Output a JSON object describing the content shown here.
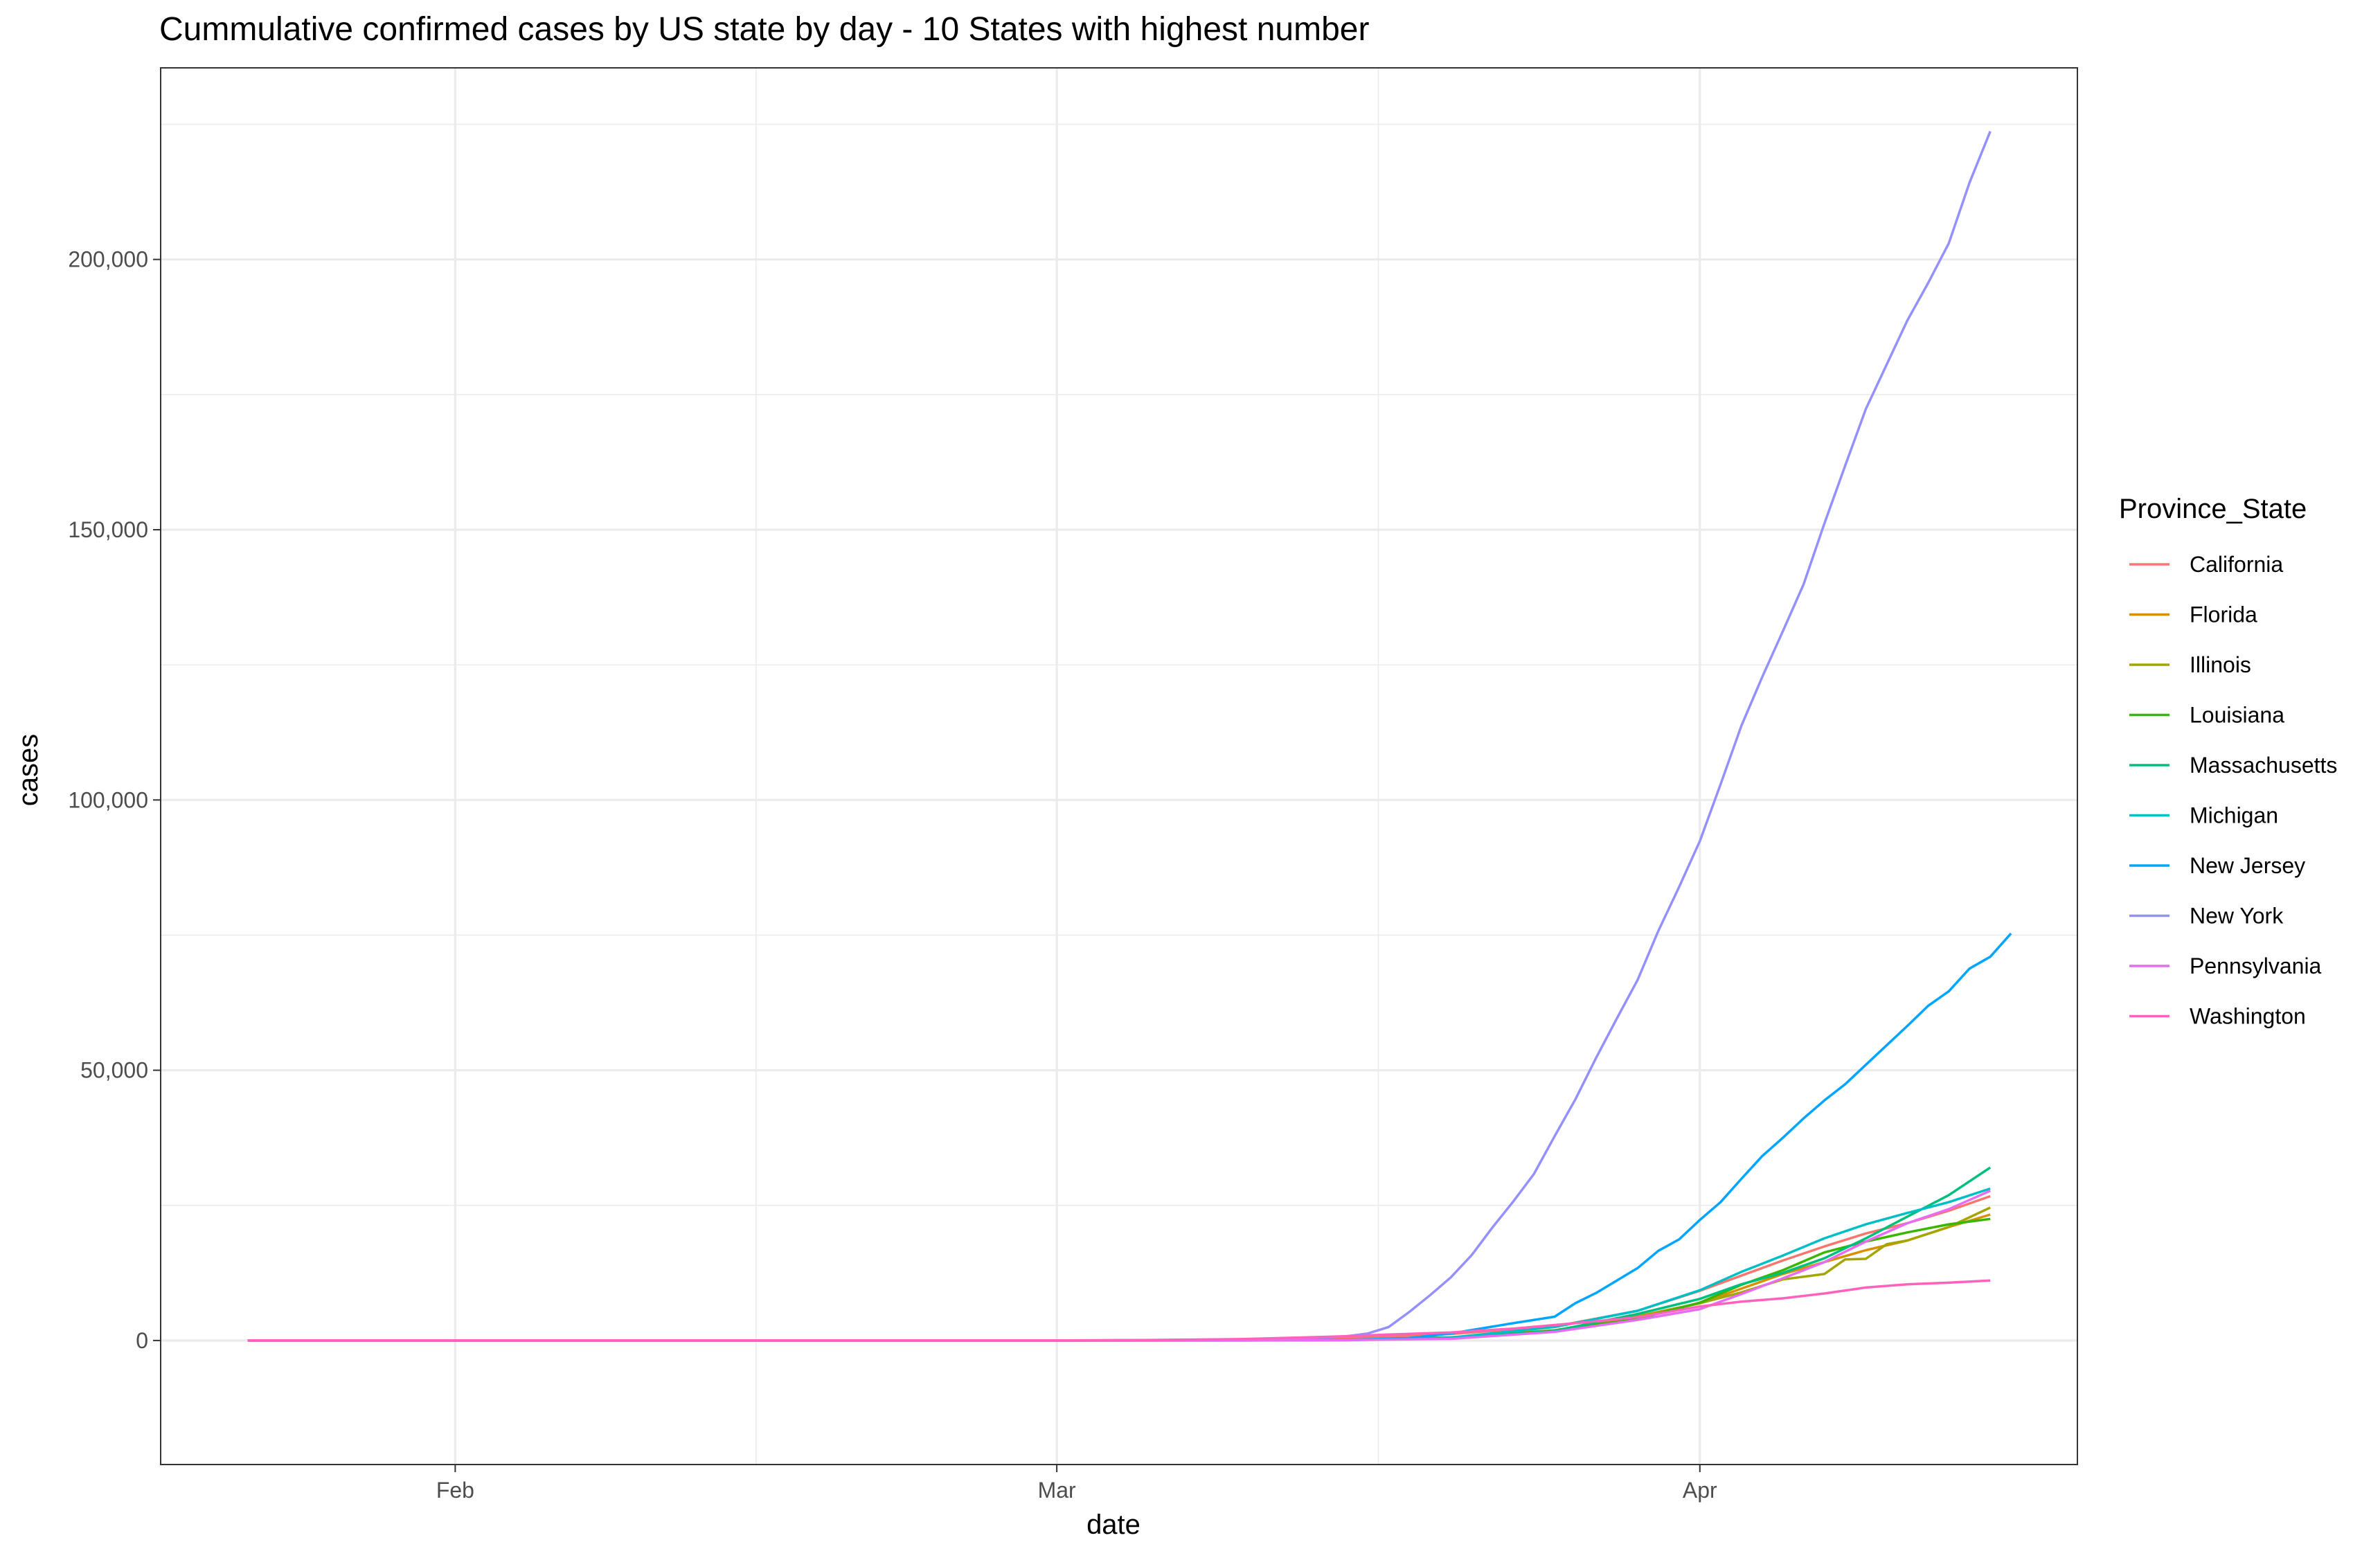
{
  "chart_data": {
    "type": "line",
    "title": "Cummulative confirmed cases by US state by day - 10 States with highest number",
    "xlabel": "date",
    "ylabel": "cases",
    "x_range": [
      "2020-01-22",
      "2020-04-15"
    ],
    "ylim": [
      -11200,
      223700
    ],
    "x_ticks": [
      {
        "date": "2020-02-01",
        "label": "Feb"
      },
      {
        "date": "2020-03-01",
        "label": "Mar"
      },
      {
        "date": "2020-04-01",
        "label": "Apr"
      }
    ],
    "y_ticks": [
      {
        "value": 0,
        "label": "0"
      },
      {
        "value": 50000,
        "label": "50,000"
      },
      {
        "value": 100000,
        "label": "100,000"
      },
      {
        "value": 150000,
        "label": "150,000"
      },
      {
        "value": 200000,
        "label": "200,000"
      }
    ],
    "grid": true,
    "legend_title": "Province_State",
    "legend_position": "right",
    "series": [
      {
        "name": "California",
        "color": "#F8766D",
        "points": [
          [
            "2020-01-22",
            0
          ],
          [
            "2020-03-01",
            0
          ],
          [
            "2020-03-10",
            150
          ],
          [
            "2020-03-15",
            400
          ],
          [
            "2020-03-20",
            1200
          ],
          [
            "2020-03-25",
            2600
          ],
          [
            "2020-03-29",
            5500
          ],
          [
            "2020-04-01",
            9200
          ],
          [
            "2020-04-03",
            12000
          ],
          [
            "2020-04-05",
            14800
          ],
          [
            "2020-04-07",
            17400
          ],
          [
            "2020-04-09",
            19800
          ],
          [
            "2020-04-11",
            21700
          ],
          [
            "2020-04-13",
            24000
          ],
          [
            "2020-04-15",
            26700
          ]
        ]
      },
      {
        "name": "Florida",
        "color": "#D89000",
        "points": [
          [
            "2020-01-22",
            0
          ],
          [
            "2020-03-01",
            0
          ],
          [
            "2020-03-10",
            20
          ],
          [
            "2020-03-15",
            100
          ],
          [
            "2020-03-20",
            520
          ],
          [
            "2020-03-25",
            1700
          ],
          [
            "2020-03-29",
            4300
          ],
          [
            "2020-04-01",
            6900
          ],
          [
            "2020-04-03",
            9600
          ],
          [
            "2020-04-05",
            12300
          ],
          [
            "2020-04-07",
            14500
          ],
          [
            "2020-04-09",
            16700
          ],
          [
            "2020-04-11",
            18500
          ],
          [
            "2020-04-13",
            21000
          ],
          [
            "2020-04-15",
            23300
          ]
        ]
      },
      {
        "name": "Illinois",
        "color": "#A3A500",
        "points": [
          [
            "2020-01-22",
            0
          ],
          [
            "2020-03-01",
            0
          ],
          [
            "2020-03-10",
            10
          ],
          [
            "2020-03-15",
            90
          ],
          [
            "2020-03-20",
            600
          ],
          [
            "2020-03-25",
            1900
          ],
          [
            "2020-03-29",
            4500
          ],
          [
            "2020-04-01",
            6900
          ],
          [
            "2020-04-03",
            8900
          ],
          [
            "2020-04-05",
            11300
          ],
          [
            "2020-04-07",
            12300
          ],
          [
            "2020-04-08",
            15000
          ],
          [
            "2020-04-09",
            15100
          ],
          [
            "2020-04-10",
            17800
          ],
          [
            "2020-04-11",
            18500
          ],
          [
            "2020-04-13",
            21000
          ],
          [
            "2020-04-15",
            24600
          ]
        ]
      },
      {
        "name": "Louisiana",
        "color": "#39B600",
        "points": [
          [
            "2020-01-22",
            0
          ],
          [
            "2020-03-01",
            0
          ],
          [
            "2020-03-10",
            0
          ],
          [
            "2020-03-15",
            90
          ],
          [
            "2020-03-20",
            520
          ],
          [
            "2020-03-25",
            1800
          ],
          [
            "2020-03-29",
            4000
          ],
          [
            "2020-04-01",
            7000
          ],
          [
            "2020-04-03",
            10300
          ],
          [
            "2020-04-05",
            13000
          ],
          [
            "2020-04-07",
            16300
          ],
          [
            "2020-04-09",
            18300
          ],
          [
            "2020-04-11",
            20000
          ],
          [
            "2020-04-13",
            21500
          ],
          [
            "2020-04-15",
            22500
          ]
        ]
      },
      {
        "name": "Massachusetts",
        "color": "#00BF7D",
        "points": [
          [
            "2020-01-22",
            0
          ],
          [
            "2020-03-01",
            0
          ],
          [
            "2020-03-10",
            90
          ],
          [
            "2020-03-15",
            150
          ],
          [
            "2020-03-20",
            400
          ],
          [
            "2020-03-25",
            1800
          ],
          [
            "2020-03-29",
            4900
          ],
          [
            "2020-04-01",
            7700
          ],
          [
            "2020-04-03",
            10400
          ],
          [
            "2020-04-05",
            12500
          ],
          [
            "2020-04-07",
            15200
          ],
          [
            "2020-04-09",
            18900
          ],
          [
            "2020-04-11",
            22900
          ],
          [
            "2020-04-13",
            26900
          ],
          [
            "2020-04-15",
            32000
          ]
        ]
      },
      {
        "name": "Michigan",
        "color": "#00BFC4",
        "points": [
          [
            "2020-01-22",
            0
          ],
          [
            "2020-03-01",
            0
          ],
          [
            "2020-03-10",
            0
          ],
          [
            "2020-03-15",
            50
          ],
          [
            "2020-03-20",
            550
          ],
          [
            "2020-03-25",
            2500
          ],
          [
            "2020-03-29",
            5500
          ],
          [
            "2020-04-01",
            9300
          ],
          [
            "2020-04-03",
            12700
          ],
          [
            "2020-04-05",
            15700
          ],
          [
            "2020-04-07",
            18900
          ],
          [
            "2020-04-09",
            21500
          ],
          [
            "2020-04-11",
            23600
          ],
          [
            "2020-04-13",
            25600
          ],
          [
            "2020-04-15",
            28100
          ]
        ]
      },
      {
        "name": "New Jersey",
        "color": "#00A5FF",
        "points": [
          [
            "2020-01-22",
            0
          ],
          [
            "2020-03-01",
            0
          ],
          [
            "2020-03-10",
            20
          ],
          [
            "2020-03-15",
            100
          ],
          [
            "2020-03-18",
            450
          ],
          [
            "2020-03-20",
            1300
          ],
          [
            "2020-03-23",
            3200
          ],
          [
            "2020-03-25",
            4400
          ],
          [
            "2020-03-26",
            6900
          ],
          [
            "2020-03-27",
            8800
          ],
          [
            "2020-03-28",
            11100
          ],
          [
            "2020-03-29",
            13400
          ],
          [
            "2020-03-30",
            16600
          ],
          [
            "2020-03-31",
            18700
          ],
          [
            "2020-04-01",
            22300
          ],
          [
            "2020-04-02",
            25600
          ],
          [
            "2020-04-03",
            29900
          ],
          [
            "2020-04-04",
            34100
          ],
          [
            "2020-04-05",
            37500
          ],
          [
            "2020-04-06",
            41100
          ],
          [
            "2020-04-07",
            44400
          ],
          [
            "2020-04-08",
            47400
          ],
          [
            "2020-04-09",
            51000
          ],
          [
            "2020-04-10",
            54600
          ],
          [
            "2020-04-11",
            58200
          ],
          [
            "2020-04-12",
            61900
          ],
          [
            "2020-04-13",
            64600
          ],
          [
            "2020-04-14",
            68800
          ],
          [
            "2020-04-15",
            71000
          ],
          [
            "2020-04-16",
            75300
          ]
        ]
      },
      {
        "name": "New York",
        "color": "#9590FF",
        "points": [
          [
            "2020-01-22",
            0
          ],
          [
            "2020-03-01",
            0
          ],
          [
            "2020-03-05",
            20
          ],
          [
            "2020-03-08",
            100
          ],
          [
            "2020-03-10",
            170
          ],
          [
            "2020-03-12",
            300
          ],
          [
            "2020-03-14",
            600
          ],
          [
            "2020-03-15",
            800
          ],
          [
            "2020-03-16",
            1300
          ],
          [
            "2020-03-17",
            2500
          ],
          [
            "2020-03-18",
            5300
          ],
          [
            "2020-03-19",
            8400
          ],
          [
            "2020-03-20",
            11700
          ],
          [
            "2020-03-21",
            15800
          ],
          [
            "2020-03-22",
            20900
          ],
          [
            "2020-03-23",
            25700
          ],
          [
            "2020-03-24",
            30800
          ],
          [
            "2020-03-25",
            37800
          ],
          [
            "2020-03-26",
            44600
          ],
          [
            "2020-03-27",
            52300
          ],
          [
            "2020-03-28",
            59600
          ],
          [
            "2020-03-29",
            66700
          ],
          [
            "2020-03-30",
            75800
          ],
          [
            "2020-03-31",
            83900
          ],
          [
            "2020-04-01",
            92400
          ],
          [
            "2020-04-02",
            102900
          ],
          [
            "2020-04-03",
            113700
          ],
          [
            "2020-04-04",
            122700
          ],
          [
            "2020-04-05",
            131200
          ],
          [
            "2020-04-06",
            139900
          ],
          [
            "2020-04-07",
            151100
          ],
          [
            "2020-04-08",
            161800
          ],
          [
            "2020-04-09",
            172300
          ],
          [
            "2020-04-10",
            180500
          ],
          [
            "2020-04-11",
            188700
          ],
          [
            "2020-04-12",
            195600
          ],
          [
            "2020-04-13",
            203000
          ],
          [
            "2020-04-14",
            214200
          ],
          [
            "2020-04-15",
            223700
          ]
        ]
      },
      {
        "name": "Pennsylvania",
        "color": "#E76BF3",
        "points": [
          [
            "2020-01-22",
            0
          ],
          [
            "2020-03-01",
            0
          ],
          [
            "2020-03-10",
            10
          ],
          [
            "2020-03-15",
            80
          ],
          [
            "2020-03-20",
            300
          ],
          [
            "2020-03-25",
            1600
          ],
          [
            "2020-03-29",
            3800
          ],
          [
            "2020-04-01",
            5800
          ],
          [
            "2020-04-03",
            8600
          ],
          [
            "2020-04-05",
            11500
          ],
          [
            "2020-04-07",
            14500
          ],
          [
            "2020-04-09",
            18300
          ],
          [
            "2020-04-11",
            21700
          ],
          [
            "2020-04-13",
            24300
          ],
          [
            "2020-04-15",
            27700
          ]
        ]
      },
      {
        "name": "Washington",
        "color": "#FF62BC",
        "points": [
          [
            "2020-01-22",
            0
          ],
          [
            "2020-03-01",
            0
          ],
          [
            "2020-03-05",
            80
          ],
          [
            "2020-03-10",
            270
          ],
          [
            "2020-03-13",
            570
          ],
          [
            "2020-03-15",
            800
          ],
          [
            "2020-03-17",
            1100
          ],
          [
            "2020-03-20",
            1500
          ],
          [
            "2020-03-23",
            2200
          ],
          [
            "2020-03-26",
            3200
          ],
          [
            "2020-03-29",
            4300
          ],
          [
            "2020-04-01",
            6300
          ],
          [
            "2020-04-03",
            7200
          ],
          [
            "2020-04-05",
            7800
          ],
          [
            "2020-04-07",
            8700
          ],
          [
            "2020-04-09",
            9800
          ],
          [
            "2020-04-11",
            10400
          ],
          [
            "2020-04-13",
            10700
          ],
          [
            "2020-04-15",
            11100
          ]
        ]
      }
    ]
  }
}
